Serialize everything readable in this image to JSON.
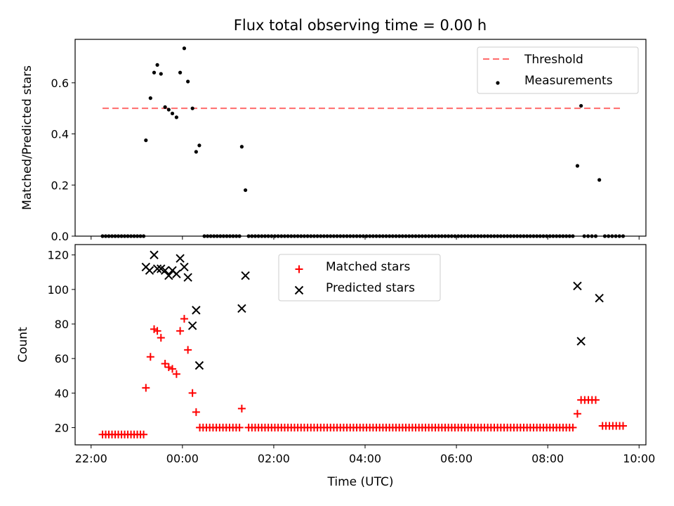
{
  "figure": {
    "title": "Flux total observing time = 0.00 h"
  },
  "chart_data": [
    {
      "type": "scatter",
      "ylabel": "Matched/Predicted stars",
      "xlabel": "",
      "xlim": [
        -2.35,
        10.15
      ],
      "ylim": [
        0,
        0.77
      ],
      "yticks": [
        0.0,
        0.2,
        0.4,
        0.6
      ],
      "ytick_labels": [
        "0.0",
        "0.2",
        "0.4",
        "0.6"
      ],
      "xticks": [
        -2,
        0,
        2,
        4,
        6,
        8,
        10
      ],
      "legend": {
        "placement": "upper right",
        "entries": [
          "Threshold",
          "Measurements"
        ]
      },
      "threshold": {
        "name": "Threshold",
        "value": 0.5,
        "x_range": [
          -1.75,
          9.65
        ],
        "color": "#ff6b6b"
      },
      "zero_run_groups": [
        {
          "from": -1.75,
          "to": -0.85,
          "count": 14
        },
        {
          "from": 0.48,
          "to": 1.25,
          "count": 12
        },
        {
          "from": 1.45,
          "to": 8.55,
          "count": 100
        },
        {
          "from": 8.8,
          "to": 9.05,
          "count": 4
        },
        {
          "from": 9.25,
          "to": 9.65,
          "count": 6
        }
      ],
      "series": [
        {
          "name": "Measurements",
          "color": "#000000",
          "marker": "dot",
          "points": [
            [
              -0.8,
              0.375
            ],
            [
              -0.7,
              0.54
            ],
            [
              -0.62,
              0.64
            ],
            [
              -0.55,
              0.67
            ],
            [
              -0.47,
              0.635
            ],
            [
              -0.38,
              0.505
            ],
            [
              -0.3,
              0.495
            ],
            [
              -0.22,
              0.48
            ],
            [
              -0.13,
              0.465
            ],
            [
              -0.05,
              0.64
            ],
            [
              0.04,
              0.735
            ],
            [
              0.12,
              0.605
            ],
            [
              0.22,
              0.5
            ],
            [
              0.3,
              0.33
            ],
            [
              0.37,
              0.355
            ],
            [
              1.3,
              0.35
            ],
            [
              1.38,
              0.18
            ],
            [
              8.65,
              0.275
            ],
            [
              8.73,
              0.51
            ],
            [
              9.13,
              0.22
            ]
          ]
        }
      ]
    },
    {
      "type": "scatter",
      "ylabel": "Count",
      "xlabel": "Time (UTC)",
      "xlim": [
        -2.35,
        10.15
      ],
      "ylim": [
        10,
        126
      ],
      "yticks": [
        20,
        40,
        60,
        80,
        100,
        120
      ],
      "ytick_labels": [
        "20",
        "40",
        "60",
        "80",
        "100",
        "120"
      ],
      "xticks": [
        -2,
        0,
        2,
        4,
        6,
        8,
        10
      ],
      "xtick_labels": [
        "22:00",
        "00:00",
        "02:00",
        "04:00",
        "06:00",
        "08:00",
        "10:00"
      ],
      "legend": {
        "placement": "upper center",
        "entries": [
          "Matched stars",
          "Predicted stars"
        ]
      },
      "run_groups": [
        {
          "from": -1.75,
          "to": -0.85,
          "count": 14,
          "value": 16
        },
        {
          "from": 0.38,
          "to": 1.25,
          "count": 13,
          "value": 20
        },
        {
          "from": 1.45,
          "to": 8.55,
          "count": 100,
          "value": 20
        },
        {
          "from": 8.73,
          "to": 9.05,
          "count": 5,
          "value": 36
        },
        {
          "from": 9.2,
          "to": 9.65,
          "count": 7,
          "value": 21
        }
      ],
      "series": [
        {
          "name": "Matched stars",
          "color": "#ff0000",
          "marker": "plus",
          "points": [
            [
              -0.8,
              43
            ],
            [
              -0.7,
              61
            ],
            [
              -0.62,
              77
            ],
            [
              -0.55,
              76
            ],
            [
              -0.47,
              72
            ],
            [
              -0.38,
              57
            ],
            [
              -0.3,
              55
            ],
            [
              -0.22,
              54
            ],
            [
              -0.13,
              51
            ],
            [
              -0.05,
              76
            ],
            [
              0.04,
              83
            ],
            [
              0.12,
              65
            ],
            [
              0.22,
              40
            ],
            [
              0.3,
              29
            ],
            [
              1.3,
              31
            ],
            [
              8.65,
              28
            ]
          ]
        },
        {
          "name": "Predicted stars",
          "color": "#000000",
          "marker": "x",
          "points": [
            [
              -0.8,
              113
            ],
            [
              -0.72,
              111
            ],
            [
              -0.62,
              120
            ],
            [
              -0.55,
              112
            ],
            [
              -0.47,
              112
            ],
            [
              -0.38,
              111
            ],
            [
              -0.3,
              108
            ],
            [
              -0.22,
              111
            ],
            [
              -0.13,
              109
            ],
            [
              -0.05,
              118
            ],
            [
              0.04,
              113
            ],
            [
              0.12,
              107
            ],
            [
              0.22,
              79
            ],
            [
              0.3,
              88
            ],
            [
              0.37,
              56
            ],
            [
              1.3,
              89
            ],
            [
              1.38,
              108
            ],
            [
              8.65,
              102
            ],
            [
              8.73,
              70
            ],
            [
              9.13,
              95
            ]
          ]
        }
      ]
    }
  ]
}
